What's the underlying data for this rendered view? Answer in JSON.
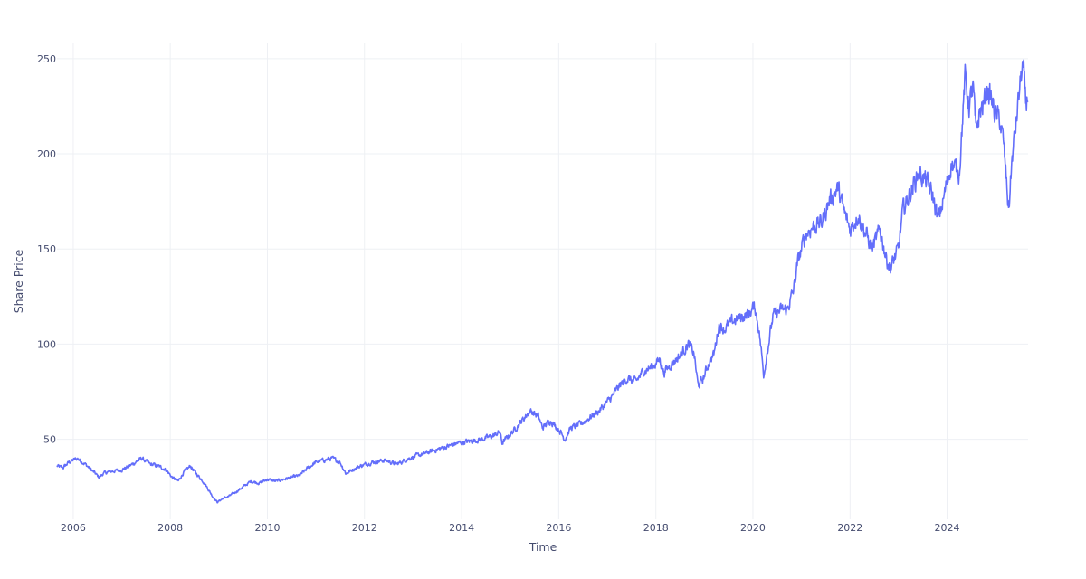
{
  "colors": {
    "line": "#636efa",
    "grid": "#eef0f4",
    "text": "#444b6e",
    "background": "#ffffff"
  },
  "chart_data": {
    "type": "line",
    "title": "",
    "xlabel": "Time",
    "ylabel": "Share Price",
    "grid": true,
    "legend": "none",
    "xlim": [
      "2005-09-01",
      "2025-09-01"
    ],
    "ylim": [
      8,
      258
    ],
    "x_ticks": [
      "2006",
      "2008",
      "2010",
      "2012",
      "2014",
      "2016",
      "2018",
      "2020",
      "2022",
      "2024"
    ],
    "y_ticks": [
      50,
      100,
      150,
      200,
      250
    ],
    "series": [
      {
        "x": [
          "2005-09-01",
          "2005-10-15",
          "2005-12-01",
          "2006-02-01",
          "2006-04-01",
          "2006-06-01",
          "2006-07-15",
          "2006-08-15",
          "2006-10-01",
          "2007-01-01",
          "2007-03-01",
          "2007-04-15",
          "2007-06-01",
          "2007-08-01",
          "2007-10-01",
          "2007-12-01",
          "2008-01-15",
          "2008-03-01",
          "2008-04-15",
          "2008-06-01",
          "2008-07-15",
          "2008-09-15",
          "2008-11-15",
          "2008-12-20",
          "2009-02-01",
          "2009-03-15",
          "2009-05-01",
          "2009-07-01",
          "2009-09-01",
          "2009-11-01",
          "2010-01-01",
          "2010-03-01",
          "2010-05-01",
          "2010-07-01",
          "2010-09-01",
          "2010-11-01",
          "2011-01-01",
          "2011-03-01",
          "2011-05-01",
          "2011-07-01",
          "2011-08-15",
          "2011-10-01",
          "2011-12-01",
          "2012-03-01",
          "2012-06-01",
          "2012-09-01",
          "2012-12-01",
          "2013-03-01",
          "2013-06-01",
          "2013-09-01",
          "2013-12-01",
          "2014-03-01",
          "2014-06-01",
          "2014-09-01",
          "2014-10-15",
          "2014-11-01",
          "2015-02-01",
          "2015-04-01",
          "2015-06-01",
          "2015-08-01",
          "2015-09-01",
          "2015-11-01",
          "2016-01-15",
          "2016-02-15",
          "2016-04-01",
          "2016-06-15",
          "2016-09-01",
          "2016-11-01",
          "2017-02-01",
          "2017-04-01",
          "2017-06-01",
          "2017-08-01",
          "2017-10-01",
          "2017-12-01",
          "2018-02-01",
          "2018-03-01",
          "2018-05-01",
          "2018-07-01",
          "2018-09-01",
          "2018-10-15",
          "2018-11-15",
          "2018-12-25",
          "2019-02-01",
          "2019-03-15",
          "2019-04-20",
          "2019-06-01",
          "2019-08-01",
          "2019-10-01",
          "2019-12-01",
          "2020-01-15",
          "2020-02-15",
          "2020-03-23",
          "2020-04-15",
          "2020-06-01",
          "2020-08-01",
          "2020-09-15",
          "2020-11-01",
          "2020-12-01",
          "2021-02-01",
          "2021-04-01",
          "2021-06-01",
          "2021-08-01",
          "2021-10-01",
          "2021-11-15",
          "2022-01-01",
          "2022-03-01",
          "2022-05-01",
          "2022-06-15",
          "2022-08-15",
          "2022-10-01",
          "2022-11-01",
          "2023-01-01",
          "2023-02-01",
          "2023-04-01",
          "2023-06-01",
          "2023-08-01",
          "2023-09-15",
          "2023-10-25",
          "2023-12-01",
          "2024-02-01",
          "2024-04-01",
          "2024-05-15",
          "2024-06-15",
          "2024-07-15",
          "2024-08-05",
          "2024-09-01",
          "2024-10-01",
          "2024-11-01",
          "2024-12-01",
          "2025-01-01",
          "2025-02-01",
          "2025-03-01",
          "2025-04-08",
          "2025-05-01",
          "2025-06-01",
          "2025-07-01",
          "2025-07-20",
          "2025-08-01",
          "2025-08-15",
          "2025-09-01"
        ],
        "y": [
          36,
          35,
          38,
          40,
          37,
          33,
          30,
          32,
          33,
          34,
          36,
          38,
          40,
          37,
          36,
          34,
          30,
          28,
          33,
          36,
          32,
          27,
          20,
          17,
          19,
          20,
          22,
          25,
          28,
          27,
          29,
          28,
          29,
          30,
          31,
          35,
          38,
          39,
          40,
          38,
          32,
          34,
          36,
          38,
          39,
          37,
          40,
          42,
          44,
          46,
          48,
          49,
          50,
          52,
          54,
          48,
          55,
          60,
          65,
          62,
          56,
          60,
          54,
          50,
          56,
          58,
          62,
          65,
          72,
          78,
          82,
          80,
          86,
          88,
          92,
          85,
          90,
          94,
          100,
          95,
          78,
          82,
          90,
          95,
          110,
          108,
          112,
          114,
          116,
          120,
          108,
          84,
          95,
          115,
          118,
          118,
          128,
          142,
          158,
          162,
          164,
          176,
          182,
          170,
          160,
          168,
          158,
          150,
          160,
          145,
          140,
          150,
          170,
          180,
          190,
          185,
          178,
          165,
          175,
          195,
          190,
          240,
          225,
          235,
          210,
          222,
          226,
          234,
          228,
          220,
          218,
          205,
          170,
          195,
          215,
          235,
          246,
          240,
          225,
          232
        ]
      }
    ]
  }
}
